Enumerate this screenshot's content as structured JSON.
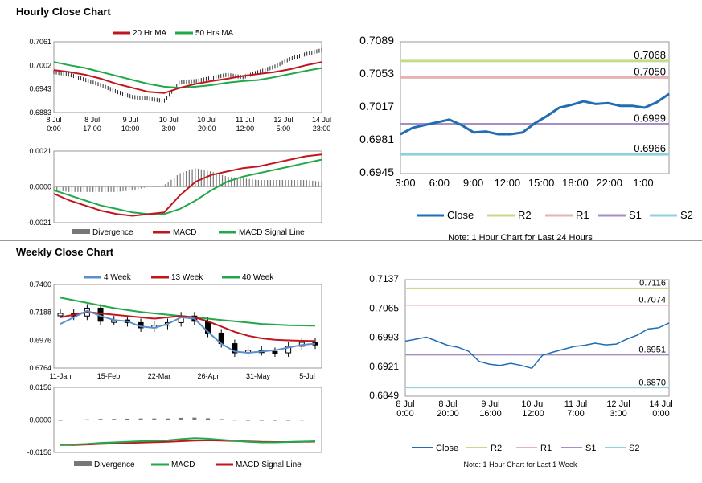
{
  "hourly_title": "Hourly Close Chart",
  "weekly_title": "Weekly Close Chart",
  "colors": {
    "close": "#1f6db3",
    "ma_red": "#c0161e",
    "ma_green": "#22a84a",
    "ma_blue": "#5b8fcc",
    "r2": "#c6da8c",
    "r1": "#e5b3b3",
    "s1": "#a58fc4",
    "s2": "#8fd1dc",
    "divergence": "#777777"
  },
  "chart_data": [
    {
      "id": "hourly_price",
      "type": "line",
      "x_ticks": [
        [
          "8 Jul",
          "0:00"
        ],
        [
          "8 Jul",
          "17:00"
        ],
        [
          "9 Jul",
          "10:00"
        ],
        [
          "10 Jul",
          "3:00"
        ],
        [
          "10 Jul",
          "20:00"
        ],
        [
          "11 Jul",
          "12:00"
        ],
        [
          "12 Jul",
          "5:00"
        ],
        [
          "14 Jul",
          "23:00"
        ]
      ],
      "y_ticks": [
        "0.7061",
        "0.7002",
        "0.6943",
        "0.6883"
      ],
      "ylim": [
        0.6883,
        0.7061
      ],
      "legend": [
        "20 Hr MA",
        "50 Hrs MA"
      ],
      "series": [
        {
          "name": "20 Hr MA",
          "values": [
            0.699,
            0.6985,
            0.6978,
            0.6968,
            0.6955,
            0.6945,
            0.6935,
            0.6932,
            0.6945,
            0.6955,
            0.6962,
            0.6968,
            0.6975,
            0.698,
            0.6985,
            0.6992,
            0.7002,
            0.701
          ]
        },
        {
          "name": "50 Hrs MA",
          "values": [
            0.701,
            0.7002,
            0.6995,
            0.6985,
            0.6975,
            0.6965,
            0.6955,
            0.6948,
            0.6945,
            0.6948,
            0.6952,
            0.6958,
            0.6962,
            0.6965,
            0.6972,
            0.698,
            0.6988,
            0.6995
          ]
        },
        {
          "name": "price",
          "values": [
            0.6985,
            0.6978,
            0.6965,
            0.6952,
            0.6935,
            0.6922,
            0.6918,
            0.6912,
            0.696,
            0.6962,
            0.697,
            0.6978,
            0.6972,
            0.6985,
            0.6998,
            0.7018,
            0.703,
            0.704
          ]
        }
      ]
    },
    {
      "id": "hourly_macd",
      "type": "bar",
      "y_ticks": [
        "0.0021",
        "0.0000",
        "-0.0021"
      ],
      "ylim": [
        -0.0021,
        0.0021
      ],
      "legend": [
        "Divergence",
        "MACD",
        "MACD Signal Line"
      ],
      "series": [
        {
          "name": "MACD",
          "values": [
            -0.0004,
            -0.0008,
            -0.0011,
            -0.0014,
            -0.0016,
            -0.0017,
            -0.0016,
            -0.0015,
            -0.0005,
            0.0003,
            0.0007,
            0.0009,
            0.0011,
            0.0012,
            0.0014,
            0.0016,
            0.0018,
            0.0019
          ]
        },
        {
          "name": "MACD Signal Line",
          "values": [
            -0.0002,
            -0.0005,
            -0.0008,
            -0.0011,
            -0.0013,
            -0.0015,
            -0.0016,
            -0.0016,
            -0.0013,
            -0.0008,
            -0.0002,
            0.0003,
            0.0006,
            0.0008,
            0.001,
            0.0012,
            0.0014,
            0.0016
          ]
        },
        {
          "name": "Divergence",
          "values": [
            -0.0002,
            -0.0003,
            -0.0003,
            -0.0003,
            -0.0003,
            -0.0002,
            0.0,
            0.0001,
            0.0008,
            0.0011,
            0.0009,
            0.0006,
            0.0005,
            0.0004,
            0.0004,
            0.0004,
            0.0004,
            0.0003
          ]
        }
      ]
    },
    {
      "id": "hourly_24h",
      "type": "line",
      "x_ticks": [
        "3:00",
        "6:00",
        "9:00",
        "12:00",
        "15:00",
        "18:00",
        "22:00",
        "1:00"
      ],
      "y_ticks": [
        "0.7089",
        "0.7053",
        "0.7017",
        "0.6981",
        "0.6945"
      ],
      "ylim": [
        0.6945,
        0.7089
      ],
      "legend": [
        "Close",
        "R2",
        "R1",
        "S1",
        "S2"
      ],
      "note": "Note: 1 Hour Chart for Last 24 Hours",
      "levels": {
        "R2": 0.7068,
        "R1": 0.705,
        "S1": 0.6999,
        "S2": 0.6966
      },
      "level_labels": {
        "R2": "0.7068",
        "R1": "0.7050",
        "S1": "0.6999",
        "S2": "0.6966"
      },
      "series": [
        {
          "name": "Close",
          "values": [
            0.6988,
            0.6995,
            0.6998,
            0.7001,
            0.7004,
            0.6998,
            0.699,
            0.6991,
            0.6988,
            0.6988,
            0.699,
            0.7,
            0.7008,
            0.7017,
            0.702,
            0.7024,
            0.7021,
            0.7022,
            0.7019,
            0.7019,
            0.7017,
            0.7023,
            0.7032
          ]
        }
      ]
    },
    {
      "id": "weekly_price",
      "type": "line",
      "x_ticks": [
        "11-Jan",
        "15-Feb",
        "22-Mar",
        "26-Apr",
        "31-May",
        "5-Jul"
      ],
      "y_ticks": [
        "0.7400",
        "0.7188",
        "0.6976",
        "0.6764"
      ],
      "ylim": [
        0.6764,
        0.74
      ],
      "legend": [
        "4 Week",
        "13 Week",
        "40 Week"
      ],
      "series": [
        {
          "name": "40 Week",
          "values": [
            0.73,
            0.728,
            0.726,
            0.724,
            0.722,
            0.7205,
            0.719,
            0.718,
            0.717,
            0.716,
            0.715,
            0.714,
            0.713,
            0.712,
            0.711,
            0.71,
            0.7095,
            0.709,
            0.7088,
            0.7086
          ]
        },
        {
          "name": "13 Week",
          "values": [
            0.715,
            0.717,
            0.719,
            0.718,
            0.717,
            0.716,
            0.715,
            0.714,
            0.715,
            0.716,
            0.715,
            0.712,
            0.708,
            0.704,
            0.701,
            0.699,
            0.698,
            0.6975,
            0.6972,
            0.697
          ]
        },
        {
          "name": "4 Week",
          "values": [
            0.71,
            0.715,
            0.72,
            0.716,
            0.713,
            0.712,
            0.708,
            0.707,
            0.71,
            0.715,
            0.714,
            0.704,
            0.695,
            0.689,
            0.688,
            0.689,
            0.69,
            0.692,
            0.694,
            0.695
          ]
        },
        {
          "name": "close",
          "values": [
            0.718,
            0.716,
            0.722,
            0.712,
            0.713,
            0.711,
            0.707,
            0.709,
            0.711,
            0.716,
            0.712,
            0.703,
            0.695,
            0.688,
            0.69,
            0.689,
            0.688,
            0.693,
            0.696,
            0.694
          ]
        }
      ]
    },
    {
      "id": "weekly_macd",
      "type": "bar",
      "y_ticks": [
        "0.0156",
        "0.0000",
        "-0.0156"
      ],
      "ylim": [
        -0.0156,
        0.0156
      ],
      "legend": [
        "Divergence",
        "MACD",
        "MACD Signal Line"
      ],
      "series": [
        {
          "name": "MACD",
          "values": [
            -0.012,
            -0.0118,
            -0.0115,
            -0.011,
            -0.0108,
            -0.0105,
            -0.0102,
            -0.01,
            -0.0098,
            -0.0092,
            -0.0088,
            -0.009,
            -0.0095,
            -0.01,
            -0.0105,
            -0.0108,
            -0.0108,
            -0.0106,
            -0.0104,
            -0.0102
          ]
        },
        {
          "name": "MACD Signal Line",
          "values": [
            -0.012,
            -0.012,
            -0.0118,
            -0.0115,
            -0.0113,
            -0.0111,
            -0.0109,
            -0.0107,
            -0.0105,
            -0.0102,
            -0.0099,
            -0.0098,
            -0.0099,
            -0.0101,
            -0.0103,
            -0.0105,
            -0.0106,
            -0.0106,
            -0.0105,
            -0.0104
          ]
        },
        {
          "name": "Divergence",
          "values": [
            0.0,
            0.0002,
            0.0003,
            0.0005,
            0.0005,
            0.0006,
            0.0007,
            0.0007,
            0.0007,
            0.001,
            0.0011,
            0.0008,
            0.0004,
            0.0001,
            -0.0002,
            -0.0003,
            -0.0002,
            0.0,
            0.0001,
            0.0002
          ]
        }
      ]
    },
    {
      "id": "weekly_1w",
      "type": "line",
      "x_ticks": [
        [
          "8 Jul",
          "0:00"
        ],
        [
          "8 Jul",
          "20:00"
        ],
        [
          "9 Jul",
          "16:00"
        ],
        [
          "10 Jul",
          "12:00"
        ],
        [
          "11 Jul",
          "7:00"
        ],
        [
          "12 Jul",
          "3:00"
        ],
        [
          "14 Jul",
          "0:00"
        ]
      ],
      "y_ticks": [
        "0.7137",
        "0.7065",
        "0.6993",
        "0.6921",
        "0.6849"
      ],
      "ylim": [
        0.6849,
        0.7137
      ],
      "legend": [
        "Close",
        "R2",
        "R1",
        "S1",
        "S2"
      ],
      "note": "Note: 1 Hour Chart for Last 1 Week",
      "levels": {
        "R2": 0.7116,
        "R1": 0.7074,
        "S1": 0.6951,
        "S2": 0.687
      },
      "level_labels": {
        "R2": "0.7116",
        "R1": "0.7074",
        "S1": "0.6951",
        "S2": "0.6870"
      },
      "series": [
        {
          "name": "Close",
          "values": [
            0.6985,
            0.699,
            0.6995,
            0.6985,
            0.6975,
            0.697,
            0.696,
            0.6935,
            0.6928,
            0.6925,
            0.693,
            0.6925,
            0.6918,
            0.695,
            0.6958,
            0.6965,
            0.6972,
            0.6975,
            0.698,
            0.6976,
            0.6978,
            0.699,
            0.7,
            0.7015,
            0.7018,
            0.703
          ]
        }
      ]
    }
  ]
}
